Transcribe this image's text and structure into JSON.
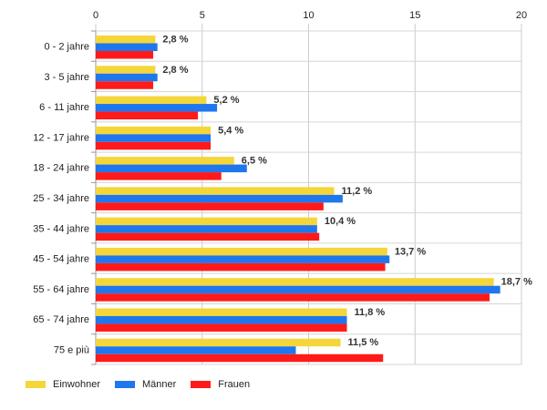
{
  "chart_data": {
    "type": "bar",
    "orientation": "horizontal",
    "categories": [
      "0 - 2 jahre",
      "3 - 5 jahre",
      "6 - 11 jahre",
      "12 - 17 jahre",
      "18 - 24 jahre",
      "25 - 34 jahre",
      "35 - 44 jahre",
      "45 - 54 jahre",
      "55 - 64 jahre",
      "65 - 74 jahre",
      "75 e più"
    ],
    "series": [
      {
        "name": "Einwohner",
        "color": "#f5d63a",
        "values": [
          2.8,
          2.8,
          5.2,
          5.4,
          6.5,
          11.2,
          10.4,
          13.7,
          18.7,
          11.8,
          11.5
        ]
      },
      {
        "name": "Männer",
        "color": "#1f77ee",
        "values": [
          2.9,
          2.9,
          5.7,
          5.4,
          7.1,
          11.6,
          10.4,
          13.8,
          19.0,
          11.8,
          9.4
        ]
      },
      {
        "name": "Frauen",
        "color": "#ff1a1a",
        "values": [
          2.7,
          2.7,
          4.8,
          5.4,
          5.9,
          10.7,
          10.5,
          13.6,
          18.5,
          11.8,
          13.5
        ]
      }
    ],
    "data_labels": [
      "2,8 %",
      "2,8 %",
      "5,2 %",
      "5,4 %",
      "6,5 %",
      "11,2 %",
      "10,4 %",
      "13,7 %",
      "18,7 %",
      "11,8 %",
      "11,5 %"
    ],
    "xlim": [
      0,
      20
    ],
    "xticks": [
      0,
      5,
      10,
      15,
      20
    ],
    "grid": true,
    "legend_position": "bottom-left"
  }
}
